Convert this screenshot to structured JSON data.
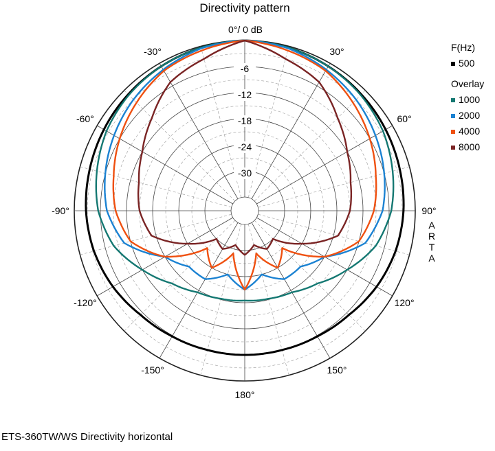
{
  "chart_data": {
    "type": "polar-line",
    "title": "Directivity pattern",
    "top_label": "0°/ 0 dB",
    "angle_labels": [
      {
        "angle": 0,
        "text": ""
      },
      {
        "angle": 30,
        "text": "30°"
      },
      {
        "angle": 60,
        "text": "60°"
      },
      {
        "angle": 90,
        "text": "90°"
      },
      {
        "angle": 120,
        "text": "120°"
      },
      {
        "angle": 150,
        "text": "150°"
      },
      {
        "angle": 180,
        "text": "180°"
      },
      {
        "angle": -150,
        "text": "-150°"
      },
      {
        "angle": -120,
        "text": "-120°"
      },
      {
        "angle": -90,
        "text": "-90°"
      },
      {
        "angle": -60,
        "text": "-60°"
      },
      {
        "angle": -30,
        "text": "-30°"
      }
    ],
    "radial_labels": [
      "-6",
      "-12",
      "-18",
      "-24",
      "-30"
    ],
    "radial_range_db": [
      -36,
      0
    ],
    "grid": true,
    "legend_position": "right",
    "legend_header": "F(Hz)",
    "overlay_label": "Overlay",
    "vertical_label": "ARTA",
    "angles_deg": [
      0,
      15,
      30,
      45,
      60,
      75,
      90,
      105,
      120,
      135,
      150,
      165,
      180
    ],
    "series": [
      {
        "name": "500",
        "color": "#000000",
        "values": [
          0,
          -0.3,
          -0.8,
          -1.3,
          -1.8,
          -2.3,
          -2.7,
          -3.3,
          -4.2,
          -5.3,
          -5.8,
          -6.0,
          -6.0
        ]
      },
      {
        "name": "1000",
        "color": "#147872",
        "values": [
          0,
          -0.3,
          -0.8,
          -1.5,
          -2.5,
          -4.0,
          -5.5,
          -8.0,
          -12,
          -15.5,
          -17.5,
          -18.2,
          -18.5
        ]
      },
      {
        "name": "2000",
        "color": "#1b82d2",
        "values": [
          0,
          -0.5,
          -1.7,
          -3.0,
          -4.5,
          -6.0,
          -7.5,
          -10.5,
          -18,
          -21,
          -21,
          -24,
          -21
        ]
      },
      {
        "name": "4000",
        "color": "#ef5010",
        "values": [
          0,
          -1.0,
          -2.0,
          -4.0,
          -6.0,
          -8.0,
          -9.5,
          -12,
          -18,
          -27,
          -24,
          -29,
          -21
        ]
      },
      {
        "name": "8000",
        "color": "#7a2424",
        "values": [
          0,
          -3,
          -5,
          -9,
          -12,
          -14,
          -15,
          -17,
          -24,
          -30,
          -29,
          -31,
          -29
        ]
      }
    ]
  },
  "footer_text": "ETS-360TW/WS  Directivity horizontal"
}
